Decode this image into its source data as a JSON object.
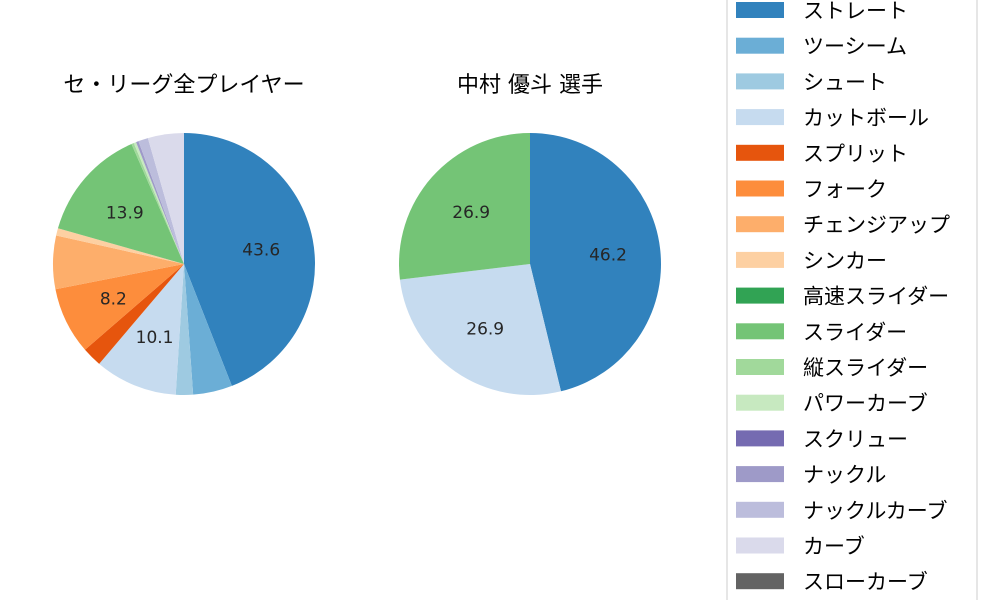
{
  "chart_data": [
    {
      "type": "pie",
      "title": "セ・リーグ全プレイヤー",
      "slices": [
        {
          "label": "ストレート",
          "value": 43.6,
          "color": "#3182bd"
        },
        {
          "label": "ツーシーム",
          "value": 4.8,
          "color": "#6baed6"
        },
        {
          "label": "シュート",
          "value": 2.1,
          "color": "#9ecae1"
        },
        {
          "label": "カットボール",
          "value": 10.1,
          "color": "#c6dbef"
        },
        {
          "label": "スプリット",
          "value": 2.4,
          "color": "#e6550d"
        },
        {
          "label": "フォーク",
          "value": 8.2,
          "color": "#fd8d3c"
        },
        {
          "label": "チェンジアップ",
          "value": 6.5,
          "color": "#fdae6b"
        },
        {
          "label": "シンカー",
          "value": 0.9,
          "color": "#fdd0a2"
        },
        {
          "label": "高速スライダー",
          "value": 0.0,
          "color": "#31a354"
        },
        {
          "label": "スライダー",
          "value": 13.9,
          "color": "#74c476"
        },
        {
          "label": "縦スライダー",
          "value": 0.3,
          "color": "#a1d99b"
        },
        {
          "label": "パワーカーブ",
          "value": 0.3,
          "color": "#c7e9c0"
        },
        {
          "label": "スクリュー",
          "value": 0.0,
          "color": "#756bb1"
        },
        {
          "label": "ナックル",
          "value": 0.3,
          "color": "#9e9ac8"
        },
        {
          "label": "ナックルカーブ",
          "value": 1.2,
          "color": "#bcbddc"
        },
        {
          "label": "カーブ",
          "value": 4.4,
          "color": "#dadaeb"
        },
        {
          "label": "スローカーブ",
          "value": 0.0,
          "color": "#636363"
        }
      ],
      "labels_shown": [
        "43.6",
        "13.9",
        "8.2",
        "10.1"
      ]
    },
    {
      "type": "pie",
      "title": "中村 優斗  選手",
      "slices": [
        {
          "label": "ストレート",
          "value": 46.2,
          "color": "#3182bd"
        },
        {
          "label": "カットボール",
          "value": 26.9,
          "color": "#c6dbef"
        },
        {
          "label": "スライダー",
          "value": 26.9,
          "color": "#74c476"
        }
      ],
      "labels_shown": [
        "46.2",
        "26.9",
        "26.9"
      ]
    }
  ],
  "legend": {
    "position": "right",
    "items": [
      {
        "label": "ストレート",
        "color": "#3182bd"
      },
      {
        "label": "ツーシーム",
        "color": "#6baed6"
      },
      {
        "label": "シュート",
        "color": "#9ecae1"
      },
      {
        "label": "カットボール",
        "color": "#c6dbef"
      },
      {
        "label": "スプリット",
        "color": "#e6550d"
      },
      {
        "label": "フォーク",
        "color": "#fd8d3c"
      },
      {
        "label": "チェンジアップ",
        "color": "#fdae6b"
      },
      {
        "label": "シンカー",
        "color": "#fdd0a2"
      },
      {
        "label": "高速スライダー",
        "color": "#31a354"
      },
      {
        "label": "スライダー",
        "color": "#74c476"
      },
      {
        "label": "縦スライダー",
        "color": "#a1d99b"
      },
      {
        "label": "パワーカーブ",
        "color": "#c7e9c0"
      },
      {
        "label": "スクリュー",
        "color": "#756bb1"
      },
      {
        "label": "ナックル",
        "color": "#9e9ac8"
      },
      {
        "label": "ナックルカーブ",
        "color": "#bcbddc"
      },
      {
        "label": "カーブ",
        "color": "#dadaeb"
      },
      {
        "label": "スローカーブ",
        "color": "#636363"
      }
    ]
  }
}
